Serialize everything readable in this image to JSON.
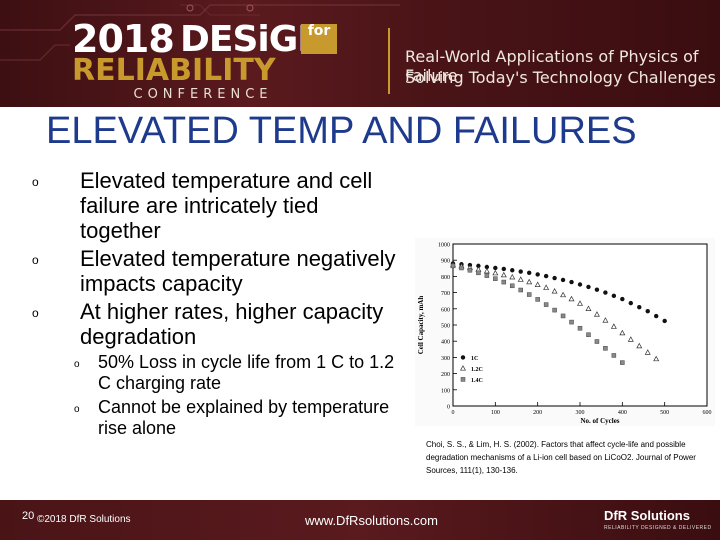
{
  "banner": {
    "logo_year": "2018",
    "logo_design": "DESiGN",
    "logo_for": "for",
    "logo_reliability": "RELIABILITY",
    "logo_conference": "CONFERENCE",
    "tagline_1": "Real-World Applications of Physics of Failure",
    "tagline_2": "Solving Today's Technology Challenges",
    "accent_color": "#c89a2e",
    "background_color": "#4a1417"
  },
  "slide": {
    "title": "ELEVATED TEMP AND FAILURES",
    "title_color": "#1e3a8c",
    "bullets": [
      {
        "text": "Elevated temperature and cell failure are intricately tied together"
      },
      {
        "text": "Elevated temperature negatively impacts capacity"
      },
      {
        "text": "At higher rates, higher capacity degradation"
      }
    ],
    "sub_bullets": [
      {
        "text": "50% Loss in cycle life from 1 C to 1.2 C charging rate"
      },
      {
        "text": "Cannot be explained by temperature rise alone"
      }
    ],
    "bullet_marker": "o",
    "citation": "Choi, S. S., & Lim, H. S. (2002). Factors that affect cycle-life and possible degradation mechanisms of a Li-ion cell based on LiCoO2. Journal of Power Sources, 111(1), 130-136."
  },
  "chart_data": {
    "type": "scatter",
    "xlabel": "No. of Cycles",
    "ylabel": "Cell Capacity, mAh",
    "xlim": [
      0,
      600
    ],
    "ylim": [
      0,
      1000
    ],
    "x_ticks": [
      "0",
      "100",
      "200",
      "300",
      "400",
      "500",
      "600"
    ],
    "y_ticks": [
      "0",
      "100",
      "200",
      "300",
      "400",
      "500",
      "600",
      "700",
      "800",
      "900",
      "1000"
    ],
    "legend_position": "bottom-left",
    "series": [
      {
        "name": "1C",
        "marker": "circle",
        "color": "#111111",
        "x": [
          0,
          20,
          40,
          60,
          80,
          100,
          120,
          140,
          160,
          180,
          200,
          220,
          240,
          260,
          280,
          300,
          320,
          340,
          360,
          380,
          400,
          420,
          440,
          460,
          480,
          500
        ],
        "y": [
          880,
          875,
          870,
          865,
          858,
          852,
          846,
          838,
          830,
          822,
          812,
          802,
          790,
          778,
          765,
          750,
          735,
          718,
          700,
          680,
          660,
          635,
          610,
          585,
          555,
          525
        ]
      },
      {
        "name": "1.2C",
        "marker": "triangle",
        "color": "#333333",
        "x": [
          0,
          20,
          40,
          60,
          80,
          100,
          120,
          140,
          160,
          180,
          200,
          220,
          240,
          260,
          280,
          300,
          320,
          340,
          360,
          380,
          400,
          420,
          440,
          460,
          480
        ],
        "y": [
          870,
          862,
          852,
          842,
          832,
          820,
          808,
          795,
          780,
          765,
          748,
          730,
          708,
          685,
          660,
          632,
          600,
          565,
          528,
          490,
          450,
          410,
          370,
          330,
          290
        ]
      },
      {
        "name": "1.4C",
        "marker": "square",
        "color": "#888888",
        "x": [
          0,
          20,
          40,
          60,
          80,
          100,
          120,
          140,
          160,
          180,
          200,
          220,
          240,
          260,
          280,
          300,
          320,
          340,
          360,
          380,
          400
        ],
        "y": [
          865,
          852,
          838,
          822,
          805,
          786,
          765,
          742,
          716,
          688,
          658,
          626,
          592,
          556,
          518,
          480,
          440,
          398,
          356,
          312,
          268
        ]
      }
    ]
  },
  "footer": {
    "page_number": "20",
    "copyright": "©2018 DfR Solutions",
    "url": "www.DfRsolutions.com",
    "brand": "DfR Solutions",
    "brand_tagline": "RELIABILITY DESIGNED & DELIVERED"
  }
}
